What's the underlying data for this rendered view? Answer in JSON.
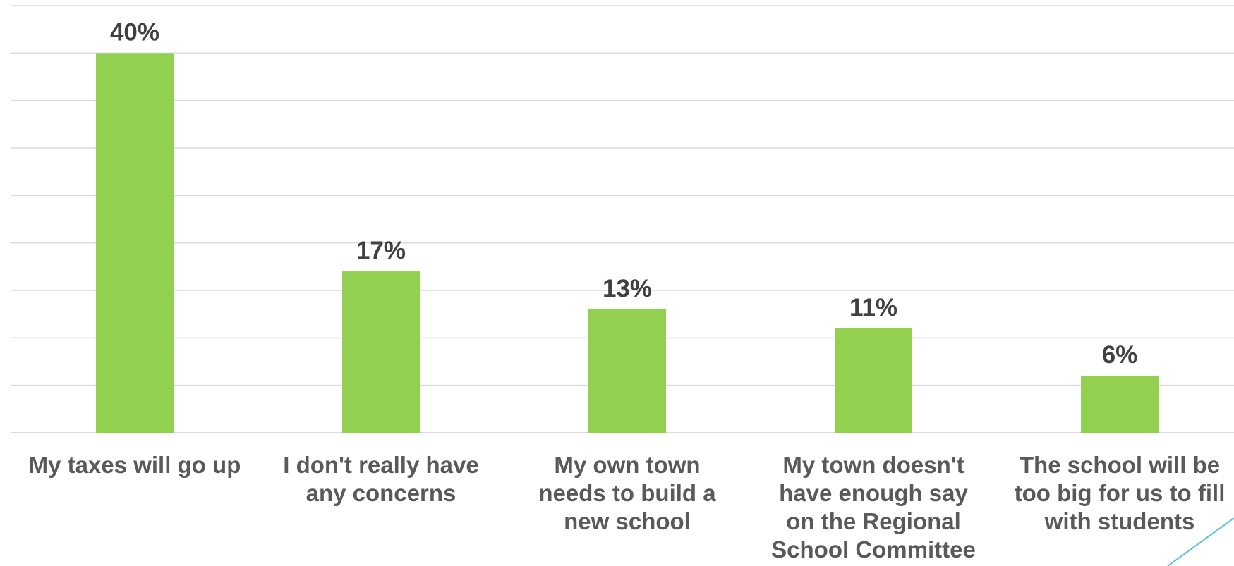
{
  "chart_data": {
    "type": "bar",
    "categories": [
      "My taxes will go up",
      "I don't really have any concerns",
      "My own town needs to build a new school",
      "My town doesn't have enough say on the Regional School Committee",
      "The school will be too big for us to fill with students"
    ],
    "values": [
      40,
      17,
      13,
      11,
      6
    ],
    "data_labels": [
      "40%",
      "17%",
      "13%",
      "11%",
      "6%"
    ],
    "title": "",
    "xlabel": "",
    "ylabel": "",
    "ylim": [
      0,
      45
    ],
    "grid": true,
    "legend": "none",
    "colors": {
      "bar": "#92D050",
      "grid": "#D9D9D9",
      "label": "#404040",
      "category_label": "#595959",
      "accent_line": "#5BC0DE"
    }
  }
}
